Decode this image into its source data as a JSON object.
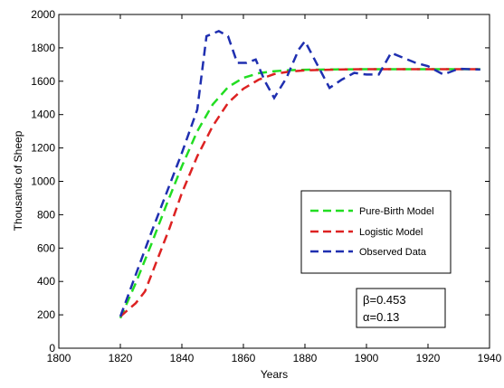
{
  "chart_data": {
    "type": "line",
    "title": "",
    "xlabel": "Years",
    "ylabel": "Thousands of Sheep",
    "xlim": [
      1800,
      1940
    ],
    "ylim": [
      0,
      2000
    ],
    "xticks": [
      1800,
      1820,
      1840,
      1860,
      1880,
      1900,
      1920,
      1940
    ],
    "yticks": [
      0,
      200,
      400,
      600,
      800,
      1000,
      1200,
      1400,
      1600,
      1800,
      2000
    ],
    "grid": false,
    "legend_position": "center-right",
    "series": [
      {
        "name": "Pure-Birth Model",
        "color": "#22dd22",
        "dash": "dashed",
        "x": [
          1820,
          1825,
          1830,
          1835,
          1840,
          1845,
          1850,
          1855,
          1860,
          1865,
          1870,
          1875,
          1880,
          1890,
          1900,
          1910,
          1920,
          1930,
          1937
        ],
        "y": [
          180,
          390,
          620,
          860,
          1090,
          1300,
          1460,
          1565,
          1620,
          1648,
          1660,
          1666,
          1669,
          1671,
          1672,
          1672,
          1672,
          1672,
          1672
        ]
      },
      {
        "name": "Logistic Model",
        "color": "#dd2222",
        "dash": "dashed",
        "x": [
          1820,
          1825,
          1828,
          1832,
          1836,
          1840,
          1845,
          1850,
          1855,
          1860,
          1865,
          1870,
          1875,
          1880,
          1890,
          1900,
          1910,
          1920,
          1930,
          1937
        ],
        "y": [
          190,
          270,
          340,
          530,
          720,
          930,
          1150,
          1330,
          1470,
          1555,
          1610,
          1643,
          1658,
          1665,
          1670,
          1672,
          1672,
          1672,
          1672,
          1672
        ]
      },
      {
        "name": "Observed Data",
        "color": "#1f2fb0",
        "dash": "dashed",
        "x": [
          1820,
          1825,
          1830,
          1835,
          1840,
          1845,
          1848,
          1852,
          1855,
          1858,
          1861,
          1864,
          1867,
          1870,
          1874,
          1878,
          1880,
          1884,
          1888,
          1892,
          1896,
          1900,
          1904,
          1908,
          1912,
          1916,
          1920,
          1925,
          1930,
          1937
        ],
        "y": [
          190,
          440,
          690,
          930,
          1170,
          1430,
          1870,
          1900,
          1870,
          1710,
          1710,
          1730,
          1600,
          1500,
          1620,
          1790,
          1840,
          1700,
          1560,
          1610,
          1650,
          1640,
          1640,
          1770,
          1740,
          1710,
          1690,
          1640,
          1675,
          1670
        ]
      }
    ],
    "annotations": [
      "β=0.453",
      "α=0.13"
    ]
  }
}
